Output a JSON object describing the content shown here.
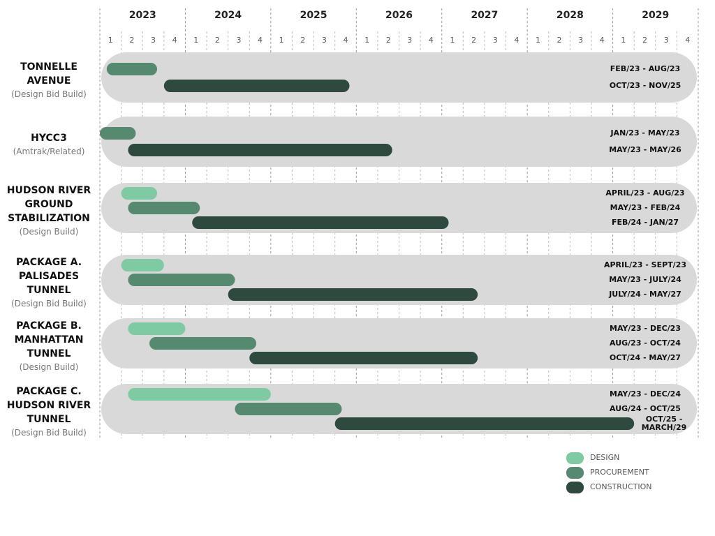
{
  "chart_data": {
    "type": "gantt",
    "years": [
      2023,
      2024,
      2025,
      2026,
      2027,
      2028,
      2029
    ],
    "quarters": [
      1,
      2,
      3,
      4
    ],
    "xlim": [
      2023,
      2030
    ],
    "categories": [
      "TONNELLE AVENUE",
      "HYCC3",
      "HUDSON RIVER GROUND STABILIZATION",
      "PACKAGE A. PALISADES TUNNEL",
      "PACKAGE B. MANHATTAN TUNNEL",
      "PACKAGE C. HUDSON RIVER TUNNEL"
    ],
    "methods": [
      "(Design Bid Build)",
      "(Amtrak/Related)",
      "(Design Build)",
      "(Design Bid Build)",
      "(Design Build)",
      "(Design Bid Build)"
    ],
    "series": [
      {
        "name": "DESIGN",
        "color": "#7ecba3",
        "start": [
          null,
          null,
          2023.25,
          2023.25,
          2023.33,
          2023.33
        ],
        "end": [
          null,
          null,
          2023.67,
          2023.75,
          2024.0,
          2025.0
        ],
        "labels": [
          null,
          null,
          "APRIL/23 - AUG/23",
          "APRIL/23 - SEPT/23",
          "MAY/23 - DEC/23",
          "MAY/23 - DEC/24"
        ]
      },
      {
        "name": "PROCUREMENT",
        "color": "#568a70",
        "start": [
          2023.08,
          2023.0,
          2023.33,
          2023.33,
          2023.58,
          2024.58
        ],
        "end": [
          2023.67,
          2023.42,
          2024.17,
          2024.58,
          2024.83,
          2025.83
        ],
        "labels": [
          "FEB/23 - AUG/23",
          "JAN/23 - MAY/23",
          "MAY/23 - FEB/24",
          "MAY/23 - JULY/24",
          "AUG/23 - OCT/24",
          "AUG/24 - OCT/25"
        ]
      },
      {
        "name": "CONSTRUCTION",
        "color": "#2e4a3e",
        "start": [
          2023.75,
          2023.33,
          2024.08,
          2024.5,
          2024.75,
          2025.75
        ],
        "end": [
          2025.92,
          2026.42,
          2027.08,
          2027.42,
          2027.42,
          2029.25
        ],
        "labels": [
          "OCT/23 - NOV/25",
          "MAY/23 - MAY/26",
          "FEB/24 - JAN/27",
          "JULY/24 - MAY/27",
          "OCT/24 - MAY/27",
          "OCT/25 - MARCH/29"
        ]
      }
    ]
  }
}
